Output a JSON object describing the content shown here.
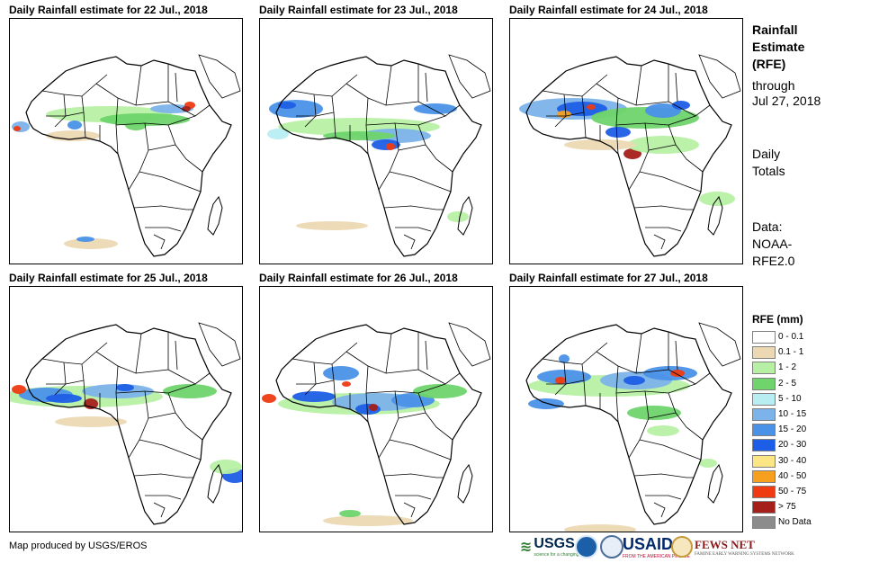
{
  "panels": [
    {
      "title": "Daily Rainfall estimate for 22 Jul., 2018"
    },
    {
      "title": "Daily Rainfall estimate for 23 Jul., 2018"
    },
    {
      "title": "Daily Rainfall estimate for 24 Jul., 2018"
    },
    {
      "title": "Daily Rainfall estimate for 25 Jul., 2018"
    },
    {
      "title": "Daily Rainfall estimate for 26 Jul., 2018"
    },
    {
      "title": "Daily Rainfall estimate for 27 Jul., 2018"
    }
  ],
  "sidebar": {
    "heading_line1": "Rainfall",
    "heading_line2": "Estimate",
    "heading_line3": "(RFE)",
    "through_label": "through",
    "through_date": "Jul 27, 2018",
    "totals_line1": "Daily",
    "totals_line2": "Totals",
    "data_line1": "Data:",
    "data_line2": "NOAA-",
    "data_line3": "RFE2.0"
  },
  "legend": {
    "title": "RFE (mm)",
    "items": [
      {
        "label": "0 - 0.1",
        "color": "#ffffff"
      },
      {
        "label": "0.1 - 1",
        "color": "#ecd9b4"
      },
      {
        "label": "1 - 2",
        "color": "#b7f0a4"
      },
      {
        "label": "2 - 5",
        "color": "#6ed46b"
      },
      {
        "label": "5 - 10",
        "color": "#b8eef2"
      },
      {
        "label": "10 - 15",
        "color": "#7cb3ea"
      },
      {
        "label": "15 - 20",
        "color": "#4a91e8"
      },
      {
        "label": "20 - 30",
        "color": "#1d5ee6"
      },
      {
        "label": "30 - 40",
        "color": "#fce584"
      },
      {
        "label": "40 - 50",
        "color": "#f79f1e"
      },
      {
        "label": "50 - 75",
        "color": "#ee3b12"
      },
      {
        "label": "> 75",
        "color": "#a5201a"
      },
      {
        "label": "No Data",
        "color": "#8c8c8c"
      }
    ]
  },
  "footer": {
    "credit": "Map produced by USGS/EROS",
    "logos": {
      "usgs": "USGS",
      "usgs_tagline": "science for a changing world",
      "usaid": "USAID",
      "usaid_tagline": "FROM THE AMERICAN PEOPLE",
      "fews": "FEWS NET",
      "fews_tagline": "FAMINE EARLY WARNING SYSTEMS NETWORK"
    }
  }
}
